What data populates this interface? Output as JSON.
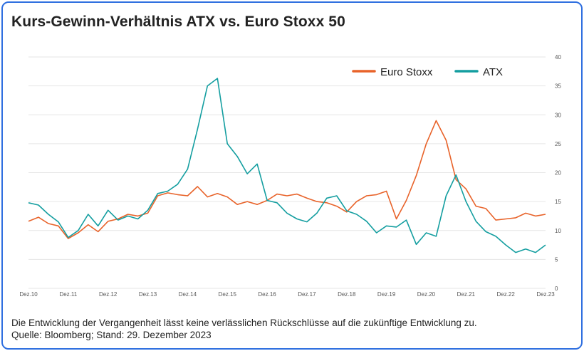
{
  "title": "Kurs-Gewinn-Verhältnis ATX vs. Euro Stoxx 50",
  "footnote": "Die Entwicklung der Vergangenheit lässt keine verlässlichen Rückschlüsse auf die zukünftige Entwicklung zu.",
  "source": "Quelle: Bloomberg; Stand: 29. Dezember 2023",
  "colors": {
    "euro_stoxx": "#e8632a",
    "atx": "#149ea0",
    "frame": "#2f6fe0",
    "grid": "#e6e6e6"
  },
  "chart_data": {
    "type": "line",
    "x_tick_labels": [
      "Dez.10",
      "Dez.11",
      "Dez.12",
      "Dez.13",
      "Dez.14",
      "Dez.15",
      "Dez.16",
      "Dez.17",
      "Dez.18",
      "Dez.19",
      "Dez.20",
      "Dez.21",
      "Dez.22",
      "Dez.23"
    ],
    "y_tick_labels": [
      "0",
      "5",
      "10",
      "15",
      "20",
      "25",
      "30",
      "35",
      "40"
    ],
    "ylim": [
      0,
      40
    ],
    "y_axis_position": "right",
    "grid": true,
    "legend_position": "top-right",
    "series": [
      {
        "name": "Euro Stoxx",
        "color": "#e8632a",
        "points": [
          [
            0,
            11.6
          ],
          [
            0.25,
            12.3
          ],
          [
            0.5,
            11.2
          ],
          [
            0.75,
            10.8
          ],
          [
            1,
            8.6
          ],
          [
            1.25,
            9.6
          ],
          [
            1.5,
            11.0
          ],
          [
            1.75,
            9.8
          ],
          [
            2,
            11.6
          ],
          [
            2.25,
            12.0
          ],
          [
            2.5,
            12.8
          ],
          [
            2.75,
            12.5
          ],
          [
            3,
            13.0
          ],
          [
            3.25,
            16.0
          ],
          [
            3.5,
            16.5
          ],
          [
            3.75,
            16.2
          ],
          [
            4,
            16.0
          ],
          [
            4.25,
            17.6
          ],
          [
            4.5,
            15.8
          ],
          [
            4.75,
            16.4
          ],
          [
            5,
            15.8
          ],
          [
            5.25,
            14.5
          ],
          [
            5.5,
            15.0
          ],
          [
            5.75,
            14.5
          ],
          [
            6,
            15.2
          ],
          [
            6.25,
            16.3
          ],
          [
            6.5,
            16.0
          ],
          [
            6.75,
            16.3
          ],
          [
            7,
            15.6
          ],
          [
            7.25,
            15.0
          ],
          [
            7.5,
            14.8
          ],
          [
            7.75,
            14.2
          ],
          [
            8,
            13.2
          ],
          [
            8.25,
            15.0
          ],
          [
            8.5,
            16.0
          ],
          [
            8.75,
            16.2
          ],
          [
            9,
            16.8
          ],
          [
            9.25,
            12.0
          ],
          [
            9.5,
            15.2
          ],
          [
            9.75,
            19.5
          ],
          [
            10,
            25.0
          ],
          [
            10.25,
            29.0
          ],
          [
            10.5,
            25.6
          ],
          [
            10.75,
            18.8
          ],
          [
            11,
            17.2
          ],
          [
            11.25,
            14.2
          ],
          [
            11.5,
            13.8
          ],
          [
            11.75,
            11.8
          ],
          [
            12,
            12.0
          ],
          [
            12.25,
            12.2
          ],
          [
            12.5,
            13.0
          ],
          [
            12.75,
            12.5
          ],
          [
            13,
            12.8
          ]
        ]
      },
      {
        "name": "ATX",
        "color": "#149ea0",
        "points": [
          [
            0,
            14.8
          ],
          [
            0.25,
            14.4
          ],
          [
            0.5,
            12.8
          ],
          [
            0.75,
            11.5
          ],
          [
            1,
            8.8
          ],
          [
            1.25,
            10.0
          ],
          [
            1.5,
            12.8
          ],
          [
            1.75,
            10.8
          ],
          [
            2,
            13.5
          ],
          [
            2.25,
            11.8
          ],
          [
            2.5,
            12.5
          ],
          [
            2.75,
            12.0
          ],
          [
            3,
            13.5
          ],
          [
            3.25,
            16.4
          ],
          [
            3.5,
            16.8
          ],
          [
            3.75,
            18.0
          ],
          [
            4,
            20.6
          ],
          [
            4.25,
            27.5
          ],
          [
            4.5,
            35.0
          ],
          [
            4.75,
            36.3
          ],
          [
            5,
            25.0
          ],
          [
            5.25,
            22.8
          ],
          [
            5.5,
            19.8
          ],
          [
            5.75,
            21.5
          ],
          [
            6,
            15.2
          ],
          [
            6.25,
            14.8
          ],
          [
            6.5,
            13.0
          ],
          [
            6.75,
            12.0
          ],
          [
            7,
            11.5
          ],
          [
            7.25,
            13.0
          ],
          [
            7.5,
            15.6
          ],
          [
            7.75,
            16.0
          ],
          [
            8,
            13.4
          ],
          [
            8.25,
            12.8
          ],
          [
            8.5,
            11.6
          ],
          [
            8.75,
            9.6
          ],
          [
            9,
            10.8
          ],
          [
            9.25,
            10.6
          ],
          [
            9.5,
            11.8
          ],
          [
            9.75,
            7.6
          ],
          [
            10,
            9.6
          ],
          [
            10.25,
            9.0
          ],
          [
            10.5,
            16.0
          ],
          [
            10.75,
            19.6
          ],
          [
            11,
            15.0
          ],
          [
            11.25,
            11.6
          ],
          [
            11.5,
            9.8
          ],
          [
            11.75,
            9.0
          ],
          [
            12,
            7.5
          ],
          [
            12.25,
            6.2
          ],
          [
            12.5,
            6.8
          ],
          [
            12.75,
            6.2
          ],
          [
            13,
            7.5
          ]
        ]
      }
    ]
  }
}
